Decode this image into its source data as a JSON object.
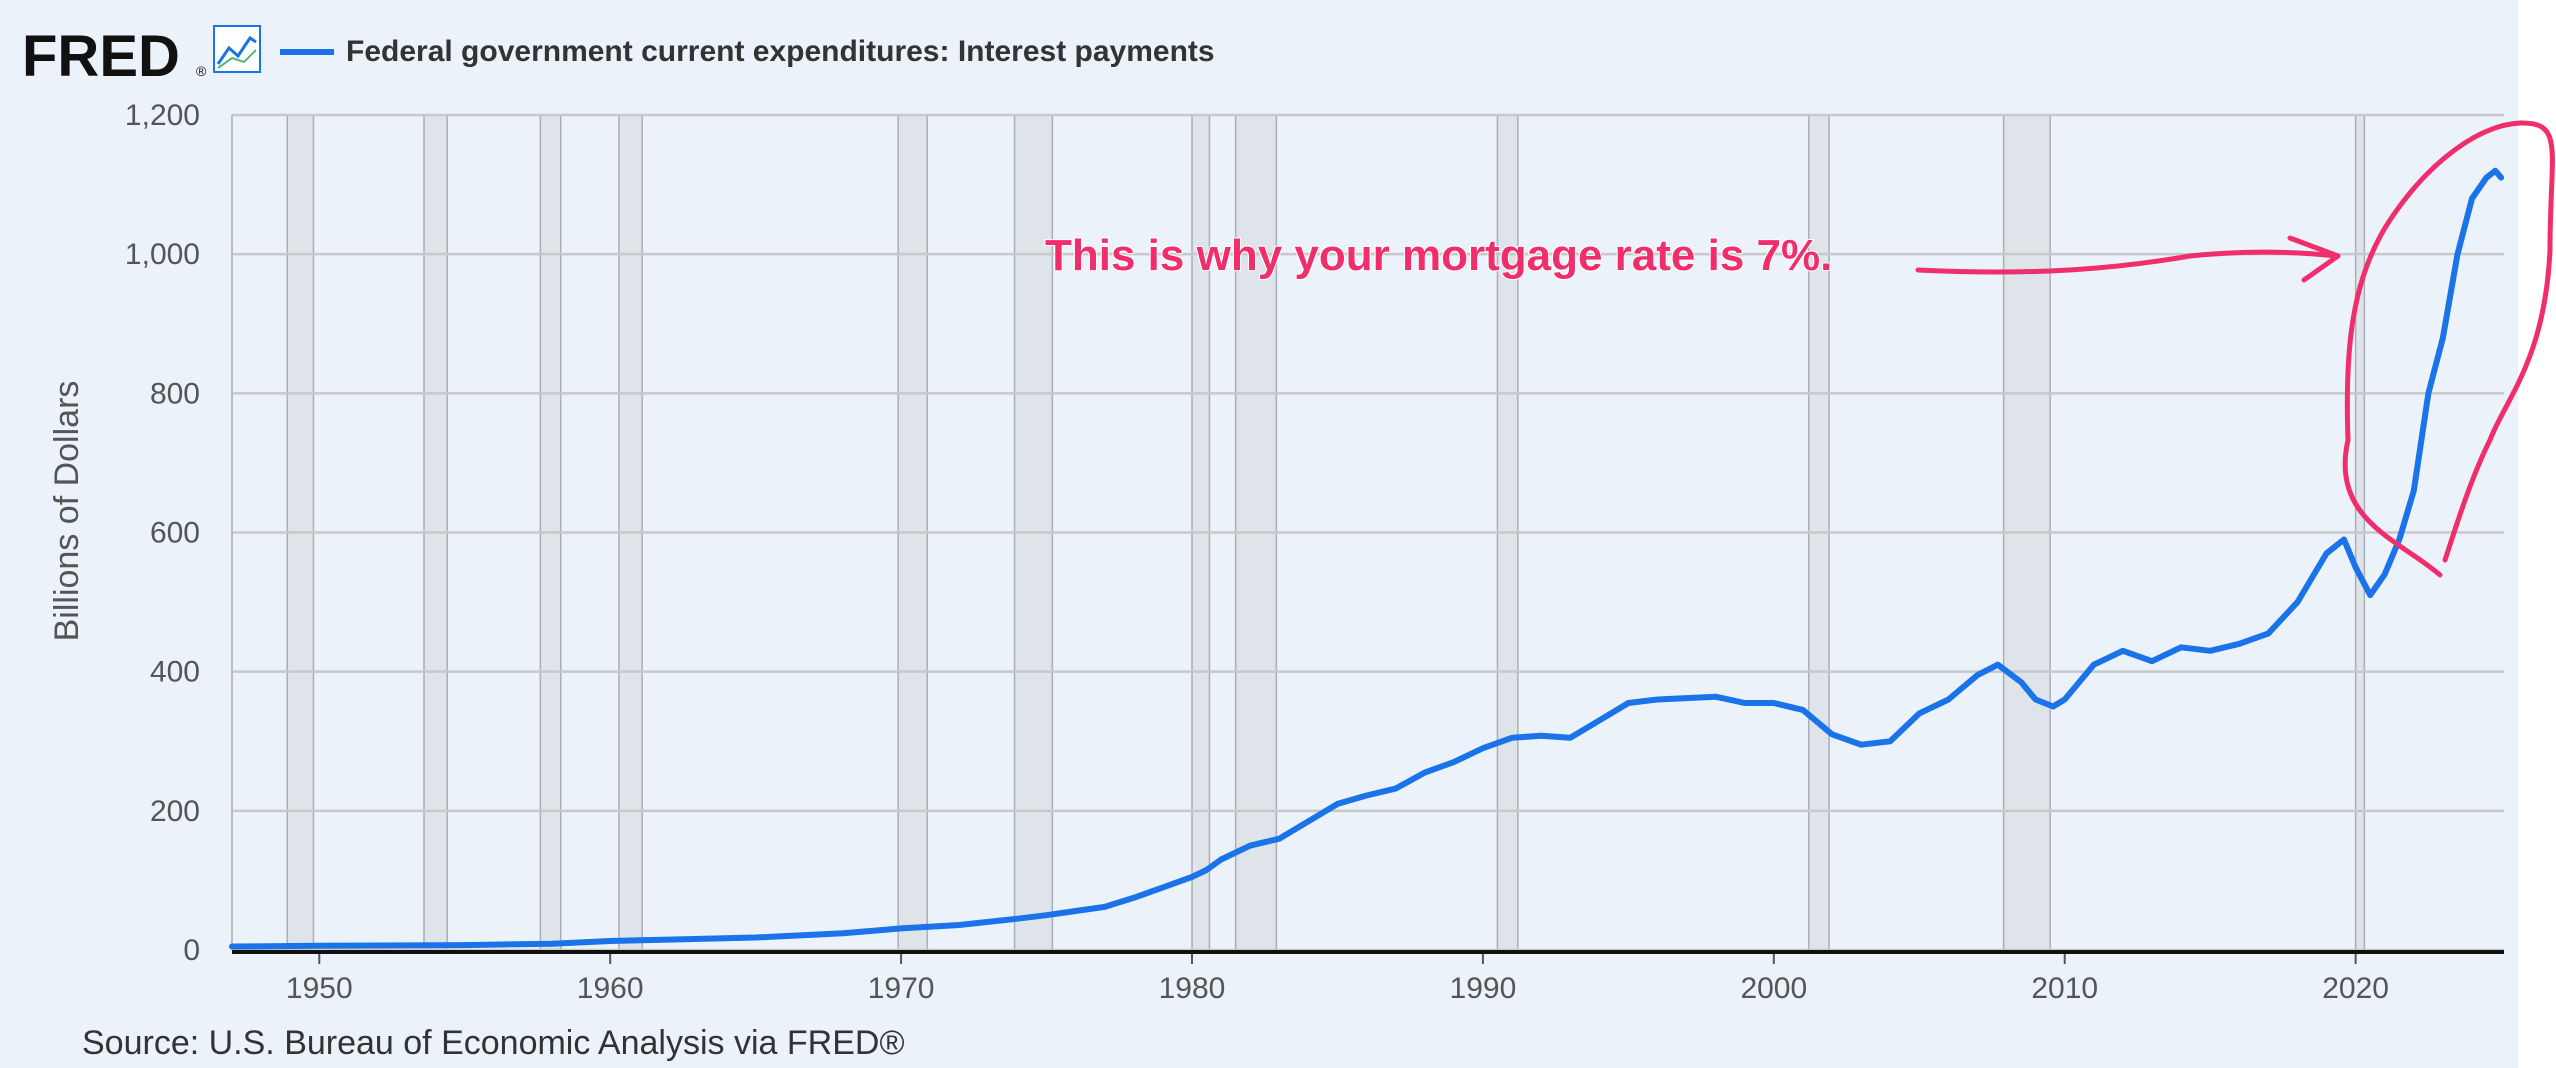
{
  "header": {
    "logo_text": "FRED",
    "logo_reg": "®",
    "series_title": "Federal government current expenditures: Interest payments"
  },
  "source": "Source: U.S. Bureau of Economic Analysis via FRED®",
  "annotation": {
    "text": "This is why your mortgage rate is 7%.",
    "color": "#ef2e6b"
  },
  "colors": {
    "line": "#1a73e8",
    "panel": "#ebf2fa",
    "recession": "#dfe3ea",
    "grid": "#c8c8c8"
  },
  "chart_data": {
    "type": "line",
    "title": "Federal government current expenditures: Interest payments",
    "ylabel": "Billions of Dollars",
    "xlabel": "",
    "xlim": [
      1947,
      2025.1
    ],
    "ylim": [
      0,
      1200
    ],
    "x_ticks": [
      1950,
      1960,
      1970,
      1980,
      1990,
      2000,
      2010,
      2020
    ],
    "y_ticks": [
      0,
      200,
      400,
      600,
      800,
      1000,
      1200
    ],
    "y_tick_labels": [
      "0",
      "200",
      "400",
      "600",
      "800",
      "1,000",
      "1,200"
    ],
    "grid": true,
    "recessions": [
      [
        1948.9,
        1949.8
      ],
      [
        1953.6,
        1954.4
      ],
      [
        1957.6,
        1958.3
      ],
      [
        1960.3,
        1961.1
      ],
      [
        1969.9,
        1970.9
      ],
      [
        1973.9,
        1975.2
      ],
      [
        1980.0,
        1980.6
      ],
      [
        1981.5,
        1982.9
      ],
      [
        1990.5,
        1991.2
      ],
      [
        2001.2,
        2001.9
      ],
      [
        2007.9,
        2009.5
      ],
      [
        2020.0,
        2020.3
      ]
    ],
    "series": [
      {
        "x": [
          1947,
          1950,
          1955,
          1958,
          1960,
          1962,
          1965,
          1968,
          1970,
          1972,
          1974,
          1975,
          1976,
          1977,
          1978,
          1979,
          1980,
          1980.5,
          1981,
          1982,
          1983,
          1984,
          1985,
          1986,
          1987,
          1988,
          1989,
          1990,
          1991,
          1992,
          1993,
          1994,
          1995,
          1996,
          1997,
          1998,
          1999,
          2000,
          2001,
          2002,
          2003,
          2004,
          2005,
          2006,
          2007,
          2007.7,
          2008.5,
          2009,
          2009.6,
          2010,
          2011,
          2012,
          2013,
          2014,
          2015,
          2016,
          2017,
          2018,
          2019,
          2019.6,
          2020,
          2020.5,
          2021,
          2021.5,
          2022,
          2022.5,
          2023,
          2023.5,
          2024,
          2024.5,
          2024.8,
          2025
        ],
        "values": [
          5,
          6,
          7,
          9,
          13,
          15,
          18,
          24,
          31,
          36,
          45,
          50,
          56,
          62,
          75,
          90,
          105,
          115,
          130,
          150,
          160,
          185,
          210,
          222,
          232,
          255,
          270,
          290,
          305,
          308,
          305,
          330,
          355,
          360,
          362,
          364,
          355,
          355,
          345,
          310,
          295,
          300,
          340,
          360,
          395,
          410,
          385,
          360,
          350,
          360,
          410,
          430,
          415,
          435,
          430,
          440,
          455,
          500,
          570,
          590,
          550,
          510,
          540,
          590,
          660,
          800,
          880,
          1000,
          1080,
          1110,
          1120,
          1110
        ]
      }
    ]
  }
}
